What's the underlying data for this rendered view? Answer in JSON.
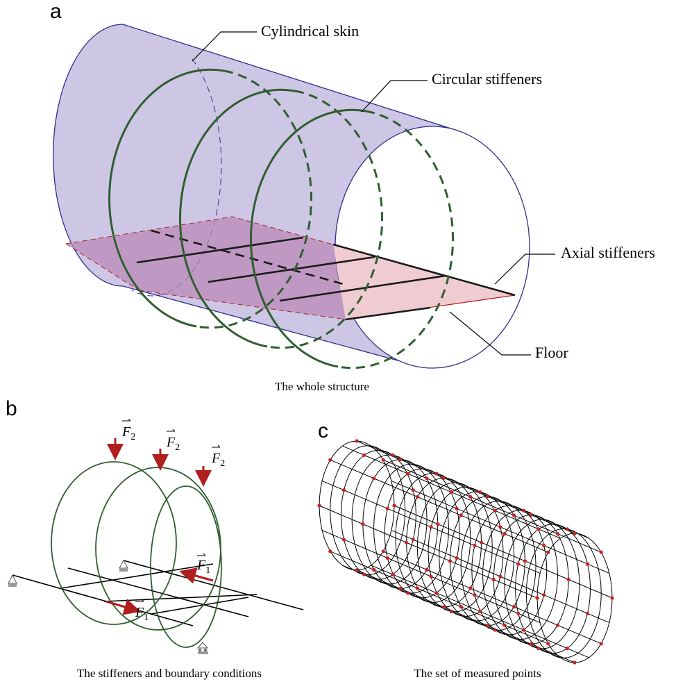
{
  "panels": {
    "a": {
      "letter": "a",
      "caption": "The whole structure",
      "labels": {
        "skin": "Cylindrical skin",
        "circular": "Circular stiffeners",
        "axial": "Axial stiffeners",
        "floor": "Floor"
      }
    },
    "b": {
      "letter": "b",
      "caption": "The stiffeners and boundary conditions",
      "forces": {
        "f2_symbol": "F",
        "f2_sub": "2",
        "f1_symbol": "F",
        "f1_sub": "1"
      }
    },
    "c": {
      "letter": "c",
      "caption": "The set of measured points"
    }
  },
  "colors": {
    "skin_fill": "#cdc6e4",
    "skin_edge": "#2e2e8a",
    "stiffener_green": "#2f5e2f",
    "floor_fill": "#b98ab8",
    "floor_pink": "#f0ccd2",
    "floor_edge": "#b01e1e",
    "force_red": "#b01e1e",
    "point_red": "#c82323"
  },
  "icons": {
    "pinned_support": "pinned-support-icon",
    "roller_support": "roller-support-icon",
    "force_arrow": "force-arrow-icon"
  }
}
